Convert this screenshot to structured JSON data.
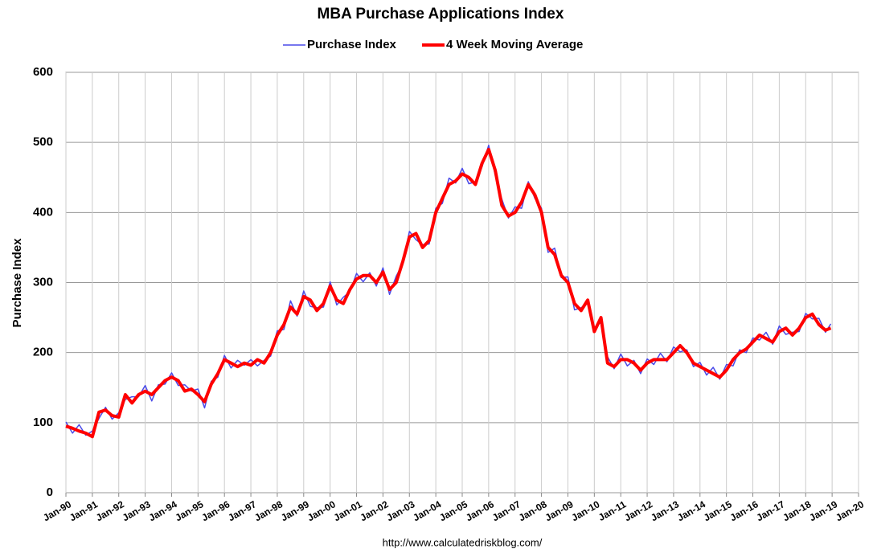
{
  "chart_data": {
    "type": "line",
    "title": "MBA Purchase Applications Index",
    "y_label": "Purchase Index",
    "source": "http://www.calculatedriskblog.com/",
    "x": [
      1990,
      1990.25,
      1990.5,
      1990.75,
      1991,
      1991.25,
      1991.5,
      1991.75,
      1992,
      1992.25,
      1992.5,
      1992.75,
      1993,
      1993.25,
      1993.5,
      1993.75,
      1994,
      1994.25,
      1994.5,
      1994.75,
      1995,
      1995.25,
      1995.5,
      1995.75,
      1996,
      1996.25,
      1996.5,
      1996.75,
      1997,
      1997.25,
      1997.5,
      1997.75,
      1998,
      1998.25,
      1998.5,
      1998.75,
      1999,
      1999.25,
      1999.5,
      1999.75,
      2000,
      2000.25,
      2000.5,
      2000.75,
      2001,
      2001.25,
      2001.5,
      2001.75,
      2002,
      2002.25,
      2002.5,
      2002.75,
      2003,
      2003.25,
      2003.5,
      2003.75,
      2004,
      2004.25,
      2004.5,
      2004.75,
      2005,
      2005.25,
      2005.5,
      2005.75,
      2006,
      2006.25,
      2006.5,
      2006.75,
      2007,
      2007.25,
      2007.5,
      2007.75,
      2008,
      2008.25,
      2008.5,
      2008.75,
      2009,
      2009.25,
      2009.5,
      2009.75,
      2010,
      2010.25,
      2010.5,
      2010.75,
      2011,
      2011.25,
      2011.5,
      2011.75,
      2012,
      2012.25,
      2012.5,
      2012.75,
      2013,
      2013.25,
      2013.5,
      2013.75,
      2014,
      2014.25,
      2014.5,
      2014.75,
      2015,
      2015.25,
      2015.5,
      2015.75,
      2016,
      2016.25,
      2016.5,
      2016.75,
      2017,
      2017.25,
      2017.5,
      2017.75,
      2018,
      2018.25,
      2018.5,
      2018.75,
      2018.95
    ],
    "series": [
      {
        "name": "Purchase Index",
        "color": "#4a4ae8",
        "width": 1.5,
        "values": [
          101,
          85,
          97,
          82,
          88,
          106,
          122,
          105,
          114,
          133,
          137,
          137,
          153,
          131,
          154,
          155,
          171,
          153,
          154,
          145,
          148,
          121,
          159,
          165,
          196,
          178,
          189,
          182,
          190,
          181,
          189,
          195,
          231,
          233,
          274,
          252,
          288,
          266,
          264,
          265,
          301,
          268,
          279,
          287,
          313,
          301,
          314,
          295,
          321,
          283,
          309,
          327,
          373,
          361,
          354,
          355,
          406,
          413,
          449,
          442,
          463,
          441,
          444,
          465,
          496,
          453,
          419,
          392,
          408,
          406,
          444,
          420,
          406,
          343,
          349,
          307,
          308,
          261,
          264,
          270,
          236,
          243,
          194,
          177,
          198,
          181,
          189,
          170,
          191,
          183,
          199,
          187,
          208,
          201,
          204,
          180,
          186,
          168,
          179,
          162,
          183,
          181,
          204,
          200,
          221,
          218,
          229,
          212,
          238,
          226,
          229,
          230,
          256,
          248,
          249,
          229,
          241
        ]
      },
      {
        "name": "4 Week Moving Average",
        "color": "#ff0000",
        "width": 4,
        "values": [
          95,
          92,
          88,
          85,
          80,
          115,
          118,
          110,
          108,
          140,
          128,
          140,
          145,
          140,
          150,
          160,
          165,
          160,
          145,
          148,
          140,
          130,
          155,
          170,
          190,
          185,
          180,
          185,
          182,
          190,
          185,
          200,
          225,
          240,
          265,
          255,
          280,
          275,
          260,
          270,
          295,
          275,
          270,
          290,
          305,
          310,
          310,
          300,
          315,
          290,
          300,
          330,
          365,
          370,
          350,
          360,
          400,
          420,
          440,
          445,
          455,
          450,
          440,
          470,
          490,
          460,
          410,
          395,
          400,
          415,
          440,
          425,
          400,
          350,
          340,
          310,
          300,
          270,
          260,
          275,
          230,
          250,
          185,
          180,
          190,
          190,
          185,
          175,
          185,
          190,
          190,
          190,
          200,
          210,
          200,
          185,
          180,
          175,
          170,
          165,
          175,
          190,
          200,
          205,
          215,
          225,
          220,
          215,
          230,
          235,
          225,
          235,
          250,
          255,
          240,
          232,
          235
        ]
      }
    ],
    "xlim": [
      1990,
      2020
    ],
    "xticks": [
      {
        "value": 1990,
        "label": "Jan-90"
      },
      {
        "value": 1991,
        "label": "Jan-91"
      },
      {
        "value": 1992,
        "label": "Jan-92"
      },
      {
        "value": 1993,
        "label": "Jan-93"
      },
      {
        "value": 1994,
        "label": "Jan-94"
      },
      {
        "value": 1995,
        "label": "Jan-95"
      },
      {
        "value": 1996,
        "label": "Jan-96"
      },
      {
        "value": 1997,
        "label": "Jan-97"
      },
      {
        "value": 1998,
        "label": "Jan-98"
      },
      {
        "value": 1999,
        "label": "Jan-99"
      },
      {
        "value": 2000,
        "label": "Jan-00"
      },
      {
        "value": 2001,
        "label": "Jan-01"
      },
      {
        "value": 2002,
        "label": "Jan-02"
      },
      {
        "value": 2003,
        "label": "Jan-03"
      },
      {
        "value": 2004,
        "label": "Jan-04"
      },
      {
        "value": 2005,
        "label": "Jan-05"
      },
      {
        "value": 2006,
        "label": "Jan-06"
      },
      {
        "value": 2007,
        "label": "Jan-07"
      },
      {
        "value": 2008,
        "label": "Jan-08"
      },
      {
        "value": 2009,
        "label": "Jan-09"
      },
      {
        "value": 2010,
        "label": "Jan-10"
      },
      {
        "value": 2011,
        "label": "Jan-11"
      },
      {
        "value": 2012,
        "label": "Jan-12"
      },
      {
        "value": 2013,
        "label": "Jan-13"
      },
      {
        "value": 2014,
        "label": "Jan-14"
      },
      {
        "value": 2015,
        "label": "Jan-15"
      },
      {
        "value": 2016,
        "label": "Jan-16"
      },
      {
        "value": 2017,
        "label": "Jan-17"
      },
      {
        "value": 2018,
        "label": "Jan-18"
      },
      {
        "value": 2019,
        "label": "Jan-19"
      },
      {
        "value": 2020,
        "label": "Jan-20"
      }
    ],
    "ylim": [
      0,
      600
    ],
    "yticks": [
      0,
      100,
      200,
      300,
      400,
      500,
      600
    ],
    "grid": true
  }
}
